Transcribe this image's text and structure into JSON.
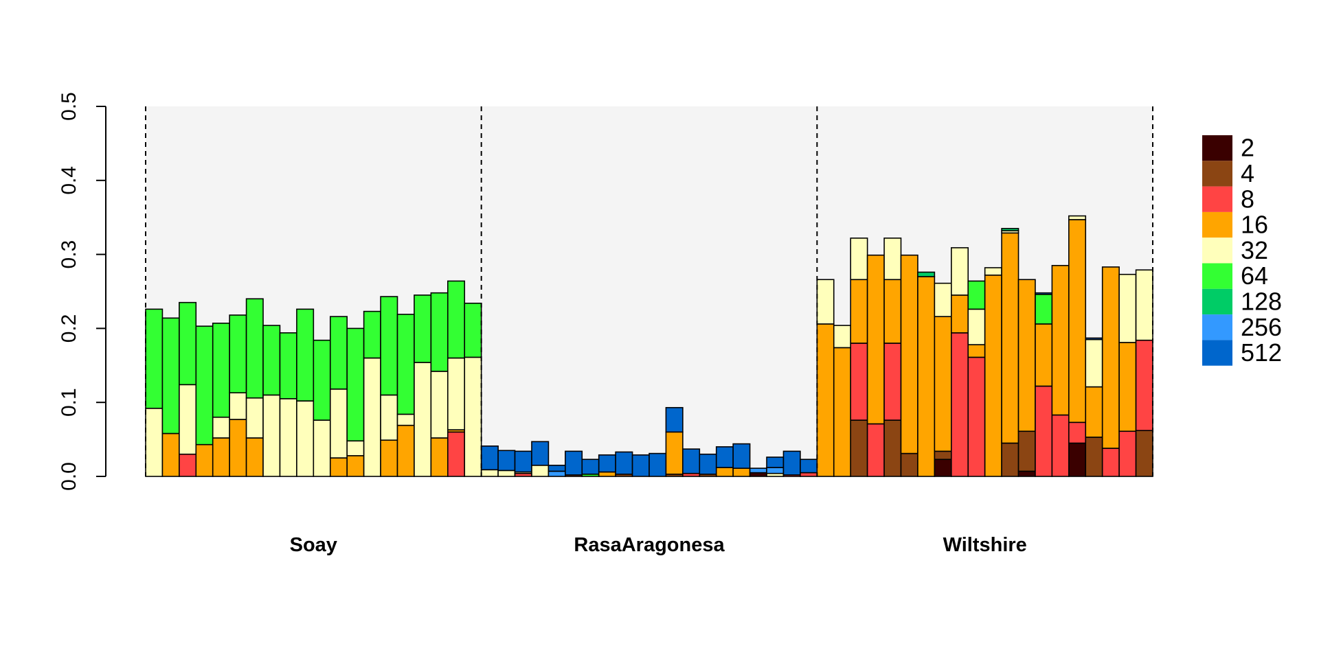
{
  "chart_data": {
    "type": "bar",
    "stacked": true,
    "ylim": [
      0,
      0.5
    ],
    "yticks": [
      0.0,
      0.1,
      0.2,
      0.3,
      0.4,
      0.5
    ],
    "ytick_labels": [
      "0.0",
      "0.1",
      "0.2",
      "0.3",
      "0.4",
      "0.5"
    ],
    "legend_position": "right",
    "legend": [
      {
        "name": "2",
        "color": "#3A0000"
      },
      {
        "name": "4",
        "color": "#8B4513"
      },
      {
        "name": "8",
        "color": "#FF4444"
      },
      {
        "name": "16",
        "color": "#FFA500"
      },
      {
        "name": "32",
        "color": "#FFFFBB"
      },
      {
        "name": "64",
        "color": "#33FF33"
      },
      {
        "name": "128",
        "color": "#00CC66"
      },
      {
        "name": "256",
        "color": "#3399FF"
      },
      {
        "name": "512",
        "color": "#0066CC"
      }
    ],
    "groups": [
      {
        "name": "Soay",
        "bars": [
          [
            0,
            0,
            0,
            0,
            0.092,
            0.134,
            0,
            0,
            0
          ],
          [
            0,
            0,
            0,
            0.058,
            0,
            0.156,
            0,
            0,
            0
          ],
          [
            0,
            0,
            0.03,
            0,
            0.094,
            0.111,
            0,
            0,
            0
          ],
          [
            0,
            0,
            0,
            0.043,
            0,
            0.16,
            0,
            0,
            0
          ],
          [
            0,
            0,
            0,
            0.052,
            0.028,
            0.127,
            0,
            0,
            0
          ],
          [
            0,
            0,
            0,
            0.077,
            0.036,
            0.105,
            0,
            0,
            0
          ],
          [
            0,
            0,
            0,
            0.052,
            0.054,
            0.134,
            0,
            0,
            0
          ],
          [
            0,
            0,
            0,
            0,
            0.11,
            0.094,
            0,
            0,
            0
          ],
          [
            0,
            0,
            0,
            0,
            0.105,
            0.089,
            0,
            0,
            0
          ],
          [
            0,
            0,
            0,
            0,
            0.102,
            0.124,
            0,
            0,
            0
          ],
          [
            0,
            0,
            0,
            0,
            0.076,
            0.108,
            0,
            0,
            0
          ],
          [
            0,
            0,
            0,
            0.025,
            0.093,
            0.098,
            0,
            0,
            0
          ],
          [
            0,
            0,
            0,
            0.028,
            0.02,
            0.152,
            0,
            0,
            0
          ],
          [
            0,
            0,
            0,
            0,
            0.16,
            0.063,
            0,
            0,
            0
          ],
          [
            0,
            0,
            0,
            0.049,
            0.061,
            0.133,
            0,
            0,
            0
          ],
          [
            0,
            0,
            0,
            0.069,
            0.015,
            0.135,
            0,
            0,
            0
          ],
          [
            0,
            0,
            0,
            0,
            0.154,
            0.091,
            0,
            0,
            0
          ],
          [
            0,
            0,
            0,
            0.052,
            0.09,
            0.106,
            0,
            0,
            0
          ],
          [
            0,
            0,
            0.06,
            0.003,
            0.097,
            0.104,
            0,
            0,
            0
          ],
          [
            0,
            0,
            0,
            0,
            0.161,
            0.073,
            0,
            0,
            0
          ]
        ]
      },
      {
        "name": "RasaAragonesa",
        "bars": [
          [
            0,
            0,
            0,
            0,
            0.009,
            0,
            0,
            0,
            0.032
          ],
          [
            0,
            0,
            0,
            0,
            0.008,
            0,
            0,
            0,
            0.027
          ],
          [
            0,
            0,
            0.004,
            0,
            0.002,
            0,
            0,
            0,
            0.028
          ],
          [
            0,
            0,
            0,
            0,
            0.015,
            0,
            0,
            0,
            0.032
          ],
          [
            0,
            0,
            0,
            0,
            0,
            0,
            0,
            0.007,
            0.008
          ],
          [
            0,
            0.002,
            0,
            0,
            0,
            0,
            0,
            0,
            0.032
          ],
          [
            0,
            0,
            0,
            0,
            0,
            0.003,
            0,
            0,
            0.02
          ],
          [
            0,
            0,
            0,
            0.006,
            0,
            0,
            0,
            0,
            0.023
          ],
          [
            0,
            0.003,
            0,
            0,
            0,
            0,
            0,
            0,
            0.03
          ],
          [
            0,
            0,
            0,
            0,
            0,
            0,
            0,
            0,
            0.029
          ],
          [
            0,
            0,
            0,
            0,
            0,
            0,
            0,
            0,
            0.031
          ],
          [
            0,
            0.003,
            0,
            0.057,
            0,
            0,
            0,
            0,
            0.033
          ],
          [
            0,
            0,
            0.004,
            0,
            0,
            0,
            0,
            0,
            0.033
          ],
          [
            0,
            0.003,
            0,
            0,
            0,
            0,
            0,
            0,
            0.027
          ],
          [
            0,
            0,
            0,
            0.012,
            0,
            0,
            0,
            0,
            0.028
          ],
          [
            0,
            0,
            0,
            0.011,
            0,
            0,
            0,
            0,
            0.033
          ],
          [
            0.005,
            0,
            0,
            0,
            0,
            0,
            0,
            0.006,
            0
          ],
          [
            0,
            0,
            0,
            0,
            0.004,
            0,
            0,
            0.008,
            0.014
          ],
          [
            0,
            0,
            0.002,
            0,
            0,
            0,
            0,
            0,
            0.032
          ],
          [
            0,
            0,
            0.005,
            0,
            0,
            0,
            0,
            0,
            0.018
          ]
        ]
      },
      {
        "name": "Wiltshire",
        "bars": [
          [
            0,
            0,
            0,
            0.206,
            0.06,
            0,
            0,
            0,
            0
          ],
          [
            0,
            0,
            0,
            0.174,
            0.03,
            0,
            0,
            0,
            0
          ],
          [
            0,
            0.076,
            0.104,
            0.086,
            0.056,
            0,
            0,
            0,
            0
          ],
          [
            0,
            0,
            0.071,
            0.228,
            0,
            0,
            0,
            0,
            0
          ],
          [
            0,
            0.076,
            0.104,
            0.086,
            0.056,
            0,
            0,
            0,
            0
          ],
          [
            0,
            0.031,
            0,
            0.268,
            0,
            0,
            0,
            0,
            0
          ],
          [
            0,
            0,
            0,
            0.27,
            0,
            0,
            0.006,
            0,
            0
          ],
          [
            0.023,
            0.011,
            0,
            0.182,
            0.045,
            0,
            0,
            0,
            0
          ],
          [
            0,
            0,
            0.194,
            0.051,
            0.064,
            0,
            0,
            0,
            0
          ],
          [
            0,
            0,
            0.161,
            0.017,
            0.048,
            0.038,
            0,
            0,
            0
          ],
          [
            0,
            0,
            0,
            0.272,
            0.01,
            0,
            0,
            0,
            0
          ],
          [
            0,
            0.045,
            0,
            0.284,
            0.003,
            0,
            0.003,
            0,
            0
          ],
          [
            0.007,
            0.054,
            0,
            0.205,
            0,
            0,
            0,
            0,
            0
          ],
          [
            0,
            0,
            0.122,
            0.084,
            0,
            0.04,
            0,
            0,
            0.002
          ],
          [
            0,
            0,
            0.083,
            0.202,
            0,
            0,
            0,
            0,
            0
          ],
          [
            0.045,
            0,
            0.028,
            0.274,
            0.005,
            0,
            0,
            0,
            0
          ],
          [
            0,
            0.053,
            0,
            0.068,
            0.064,
            0,
            0,
            0,
            0.002
          ],
          [
            0,
            0,
            0.038,
            0.245,
            0,
            0,
            0,
            0,
            0
          ],
          [
            0,
            0,
            0.061,
            0.12,
            0.092,
            0,
            0,
            0,
            0
          ],
          [
            0,
            0.062,
            0.122,
            0,
            0.095,
            0,
            0,
            0,
            0
          ]
        ]
      }
    ]
  }
}
